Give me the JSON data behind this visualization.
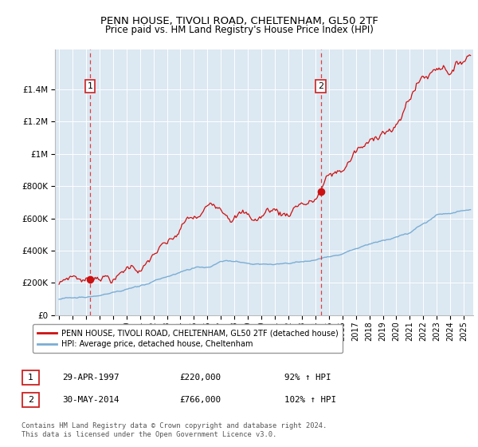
{
  "title": "PENN HOUSE, TIVOLI ROAD, CHELTENHAM, GL50 2TF",
  "subtitle": "Price paid vs. HM Land Registry's House Price Index (HPI)",
  "sale1_year": 1997.29,
  "sale1_price": 220000,
  "sale1_label": "1",
  "sale1_pct": "92% ↑ HPI",
  "sale1_display": "29-APR-1997",
  "sale2_year": 2014.41,
  "sale2_price": 766000,
  "sale2_label": "2",
  "sale2_pct": "102% ↑ HPI",
  "sale2_display": "30-MAY-2014",
  "hpi_color": "#7aadd4",
  "price_color": "#cc1111",
  "dashed_line_color": "#dd2222",
  "plot_bg_color": "#dce8f2",
  "ylim_max": 1650000,
  "xlim_min": 1994.7,
  "xlim_max": 2025.7,
  "legend_line1": "PENN HOUSE, TIVOLI ROAD, CHELTENHAM, GL50 2TF (detached house)",
  "legend_line2": "HPI: Average price, detached house, Cheltenham",
  "footer": "Contains HM Land Registry data © Crown copyright and database right 2024.\nThis data is licensed under the Open Government Licence v3.0."
}
